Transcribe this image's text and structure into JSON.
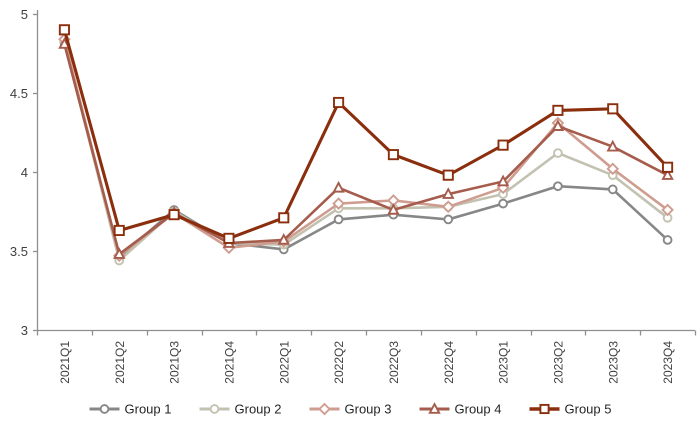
{
  "chart_data": {
    "type": "line",
    "title": "",
    "xlabel": "",
    "ylabel": "",
    "categories": [
      "2021Q1",
      "2021Q2",
      "2021Q3",
      "2021Q4",
      "2022Q1",
      "2022Q2",
      "2022Q3",
      "2022Q4",
      "2023Q1",
      "2023Q2",
      "2023Q3",
      "2023Q4"
    ],
    "series": [
      {
        "name": "Group 1",
        "marker": "circle",
        "color": "#878787",
        "values": [
          4.82,
          3.46,
          3.76,
          3.55,
          3.51,
          3.7,
          3.73,
          3.7,
          3.8,
          3.91,
          3.89,
          3.57
        ]
      },
      {
        "name": "Group 2",
        "marker": "circle",
        "color": "#c3c2b1",
        "values": [
          4.83,
          3.44,
          3.75,
          3.55,
          3.54,
          3.77,
          3.77,
          3.78,
          3.86,
          4.12,
          3.98,
          3.71
        ]
      },
      {
        "name": "Group 3",
        "marker": "diamond",
        "color": "#cf9d90",
        "values": [
          4.84,
          3.47,
          3.74,
          3.52,
          3.56,
          3.8,
          3.82,
          3.78,
          3.9,
          4.31,
          4.02,
          3.76
        ]
      },
      {
        "name": "Group 4",
        "marker": "triangle",
        "color": "#a55c4c",
        "values": [
          4.81,
          3.48,
          3.74,
          3.55,
          3.57,
          3.9,
          3.76,
          3.86,
          3.94,
          4.29,
          4.16,
          3.98
        ]
      },
      {
        "name": "Group 5",
        "marker": "square",
        "color": "#8a2e0d",
        "values": [
          4.9,
          3.63,
          3.73,
          3.58,
          3.71,
          4.44,
          4.11,
          3.98,
          4.17,
          4.39,
          4.4,
          4.03
        ]
      }
    ],
    "ylim": [
      3,
      5
    ],
    "ytick_step": 0.5,
    "ytick_labels": [
      "3",
      "3.5",
      "4",
      "4.5",
      "5"
    ],
    "grid": false,
    "legend_position": "bottom",
    "axis_color": "#8f8f8f",
    "label_color": "#404040"
  }
}
